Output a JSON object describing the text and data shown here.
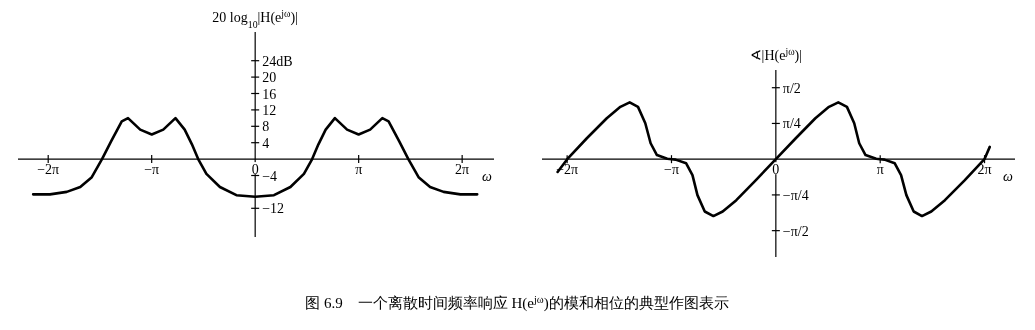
{
  "chart_data": [
    {
      "type": "line",
      "ylabel": "20 log$_{10}$|H(e$^{jω}$)|",
      "xlabel": "ω",
      "xlim": [
        -7.2,
        7.25
      ],
      "ylim": [
        -19,
        31
      ],
      "xticks": [
        {
          "value": -6.2832,
          "label": "−2π"
        },
        {
          "value": -3.1416,
          "label": "−π"
        },
        {
          "value": 0,
          "label": "0"
        },
        {
          "value": 3.1416,
          "label": "π"
        },
        {
          "value": 6.2832,
          "label": "2π"
        }
      ],
      "yticks": [
        {
          "value": 24,
          "label": "24dB"
        },
        20,
        16,
        12,
        8,
        4,
        {
          "value": -4,
          "label": "−4"
        },
        {
          "value": -12,
          "label": "−12"
        }
      ],
      "color": "#000000",
      "x": [
        -6.74,
        -6.23,
        -5.72,
        -5.31,
        -4.96,
        -4.65,
        -4.37,
        -4.05,
        -3.86,
        -3.49,
        -3.14,
        -2.79,
        -2.42,
        -2.14,
        -1.92,
        -1.73,
        -1.48,
        -1.07,
        -0.57,
        0,
        0.57,
        1.07,
        1.48,
        1.73,
        1.92,
        2.14,
        2.42,
        2.79,
        3.14,
        3.49,
        3.86,
        4.05,
        4.37,
        4.65,
        4.96,
        5.31,
        5.72,
        6.23,
        6.74
      ],
      "values": [
        -8.6,
        -8.6,
        -8.0,
        -6.8,
        -4.4,
        0,
        4.4,
        9.2,
        10,
        7.2,
        6,
        7.2,
        10,
        7.2,
        3.6,
        0,
        -3.6,
        -6.8,
        -8.8,
        -9.2,
        -8.8,
        -6.8,
        -3.6,
        0,
        3.6,
        7.2,
        10,
        7.2,
        6,
        7.2,
        10,
        9.2,
        4.4,
        0,
        -4.4,
        -6.8,
        -8.0,
        -8.6,
        -8.6
      ],
      "annotations": [
        "图 6.9　一个离散时间频率响应 H(e$^{jω}$)的模和相位的典型作图表示"
      ]
    },
    {
      "type": "line",
      "ylabel": "∢|H(e$^{jω}$)|",
      "xlabel": "ω",
      "xlim": [
        -7.04,
        7.2
      ],
      "ylim": [
        -2.15,
        1.96
      ],
      "xticks": [
        {
          "value": -6.2832,
          "label": "−2π"
        },
        {
          "value": -3.1416,
          "label": "−π"
        },
        {
          "value": 0,
          "label": "0"
        },
        {
          "value": 3.1416,
          "label": "π"
        },
        {
          "value": 6.2832,
          "label": "2π"
        }
      ],
      "yticks": [
        {
          "value": 1.5708,
          "label": "π/2"
        },
        {
          "value": 0.7854,
          "label": "π/4"
        },
        {
          "value": -0.7854,
          "label": "−π/4"
        },
        {
          "value": -1.5708,
          "label": "−π/2"
        }
      ],
      "color": "#000000",
      "x": [
        -6.57,
        -6.28,
        -5.69,
        -5.09,
        -4.68,
        -4.4,
        -4.15,
        -3.93,
        -3.77,
        -3.58,
        -3.27,
        -3.14,
        -3.02,
        -2.7,
        -2.51,
        -2.36,
        -2.14,
        -1.88,
        -1.6,
        -1.19,
        -0.6,
        0,
        0.6,
        1.19,
        1.6,
        1.88,
        2.14,
        2.36,
        2.51,
        2.7,
        3.02,
        3.14,
        3.27,
        3.58,
        3.77,
        3.93,
        4.15,
        4.4,
        4.68,
        5.09,
        5.69,
        6.28,
        6.44
      ],
      "values": [
        -0.28,
        0,
        0.46,
        0.9,
        1.15,
        1.25,
        1.15,
        0.79,
        0.35,
        0.09,
        0.01,
        0,
        -0.01,
        -0.09,
        -0.35,
        -0.79,
        -1.15,
        -1.25,
        -1.15,
        -0.9,
        -0.46,
        0,
        0.46,
        0.9,
        1.15,
        1.25,
        1.15,
        0.79,
        0.35,
        0.09,
        0.01,
        0,
        -0.01,
        -0.09,
        -0.35,
        -0.79,
        -1.15,
        -1.25,
        -1.15,
        -0.9,
        -0.46,
        0,
        0.27
      ]
    }
  ]
}
